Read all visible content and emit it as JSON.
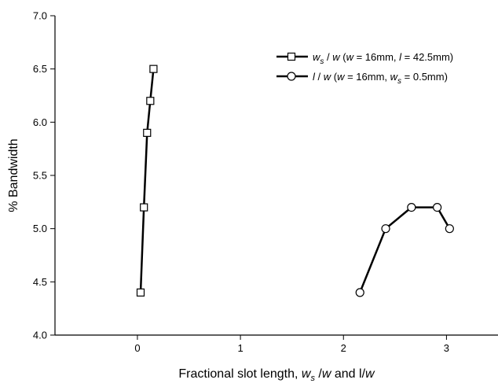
{
  "chart_data": {
    "type": "line",
    "xlabel": "Fractional slot length, w_s /w and l/w",
    "ylabel": "% Bandwidth",
    "xlim": [
      -0.8,
      3.5
    ],
    "ylim": [
      4.0,
      7.0
    ],
    "x_ticks": [
      0,
      1,
      2,
      3
    ],
    "y_ticks": [
      4.0,
      4.5,
      5.0,
      5.5,
      6.0,
      6.5,
      7.0
    ],
    "x_tick_labels": [
      "0",
      "1",
      "2",
      "3"
    ],
    "y_tick_labels": [
      "4.0",
      "4.5",
      "5.0",
      "5.5",
      "6.0",
      "6.5",
      "7.0"
    ],
    "grid": false,
    "legend_position": "top-right",
    "series": [
      {
        "name": "w_s / w (w = 16mm, l = 42.5mm)",
        "marker": "square",
        "x": [
          0.031,
          0.063,
          0.094,
          0.125,
          0.156
        ],
        "y": [
          4.4,
          5.2,
          5.9,
          6.2,
          6.5
        ]
      },
      {
        "name": "l / w (w = 16mm, w_s = 0.5mm)",
        "marker": "circle",
        "x": [
          2.16,
          2.41,
          2.66,
          2.91,
          3.03
        ],
        "y": [
          4.4,
          5.0,
          5.2,
          5.2,
          5.0
        ]
      }
    ]
  }
}
